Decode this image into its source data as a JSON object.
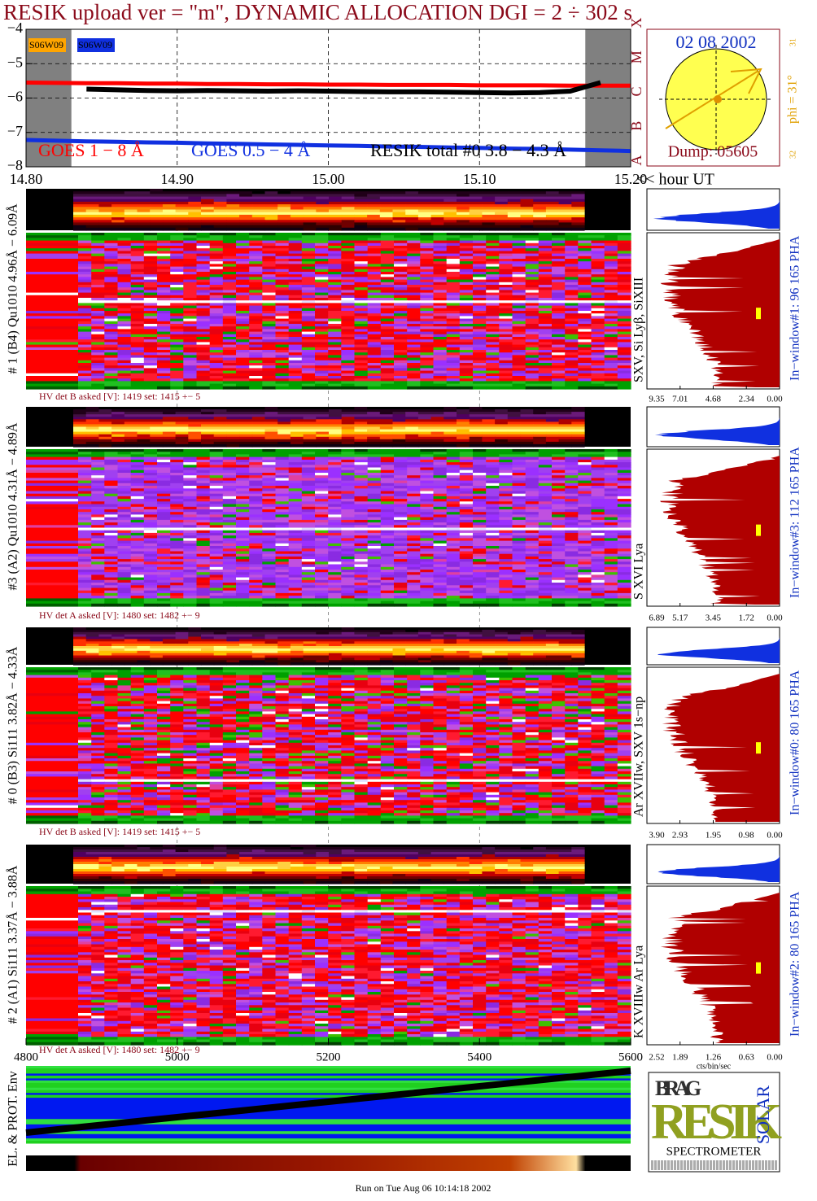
{
  "title": "RESIK upload ver = \"m\", DYNAMIC ALLOCATION  DGI =   2 ÷ 302 s",
  "time_axis_label": "<< hour UT",
  "footer": "Run on Tue Aug 06 10:14:18 2002",
  "sun": {
    "date": "02 08 2002",
    "dump": "Dump: 05605",
    "phi": "phi = 31°",
    "top": "31",
    "bottom": "32"
  },
  "logo": {
    "top": "BRAG",
    "main": "RESIK",
    "side": "SOLAR",
    "caption": "SPECTROMETER"
  },
  "chart_data": [
    {
      "type": "line",
      "x": [
        14.8,
        14.82,
        14.84,
        14.86,
        14.88,
        14.9,
        14.92,
        14.94,
        14.96,
        14.98,
        15.0,
        15.02,
        15.04,
        15.06,
        15.08,
        15.1,
        15.12,
        15.14,
        15.16,
        15.18,
        15.2
      ],
      "xlim": [
        14.8,
        15.2
      ],
      "xticks": [
        {
          "value": 14.8,
          "label": "14.80"
        },
        {
          "value": 14.9,
          "label": "14.90"
        },
        {
          "value": 15.0,
          "label": "15.00"
        },
        {
          "value": 15.1,
          "label": "15.10"
        },
        {
          "value": 15.2,
          "label": "15.20"
        }
      ],
      "ylim": [
        -8,
        -4
      ],
      "yticks": [
        {
          "value": -4,
          "label": "−4"
        },
        {
          "value": -5,
          "label": "−5"
        },
        {
          "value": -6,
          "label": "−6"
        },
        {
          "value": -7,
          "label": "−7"
        },
        {
          "value": -8,
          "label": "−8"
        }
      ],
      "grid": true,
      "shaded_x": [
        [
          14.8,
          14.83
        ],
        [
          15.17,
          15.2
        ]
      ],
      "flare_classes": [
        "A",
        "B",
        "C",
        "M",
        "X"
      ],
      "sources": [
        {
          "name": "S06W09",
          "color": "#ffa500"
        },
        {
          "name": "S06W09",
          "color": "#1030e0"
        }
      ],
      "series": [
        {
          "name": "GOES 1 − 8 Å",
          "color": "#ff0000",
          "values": [
            -5.55,
            -5.56,
            -5.57,
            -5.57,
            -5.58,
            -5.58,
            -5.59,
            -5.59,
            -5.6,
            -5.6,
            -5.61,
            -5.61,
            -5.62,
            -5.62,
            -5.62,
            -5.63,
            -5.63,
            -5.63,
            -5.64,
            -5.64,
            -5.64
          ]
        },
        {
          "name": "GOES 0.5 − 4 Å",
          "color": "#1030e0",
          "values": [
            -7.22,
            -7.24,
            -7.26,
            -7.27,
            -7.29,
            -7.3,
            -7.32,
            -7.33,
            -7.35,
            -7.36,
            -7.38,
            -7.39,
            -7.41,
            -7.42,
            -7.44,
            -7.45,
            -7.47,
            -7.48,
            -7.5,
            -7.52,
            -7.54
          ]
        },
        {
          "name": "RESIK total #0  3.8 − 4.3 Å",
          "color": "#000000",
          "values": [
            null,
            null,
            -5.74,
            -5.76,
            -5.78,
            -5.79,
            -5.78,
            -5.79,
            -5.8,
            -5.79,
            -5.8,
            -5.81,
            -5.82,
            -5.82,
            -5.83,
            -5.84,
            -5.85,
            -5.84,
            -5.8,
            -5.55,
            null
          ]
        }
      ]
    },
    {
      "type": "heatmap",
      "label": "# 1 (B4) Qu1010 4.96Å − 6.09Å",
      "lines_label": "SXV, Si Lyβ, SiXIII",
      "window_label": "In−window#1:   96 165  PHA",
      "hv_label": "HV det B asked [V]:  1419 set:  1415 +−    5",
      "hist_xlim": [
        9.35,
        0
      ],
      "hist_xticks": [
        9.35,
        7.01,
        4.68,
        2.34,
        {
          "value": 0,
          "label": "0.00"
        }
      ]
    },
    {
      "type": "heatmap",
      "label": "#3 (A2) Qu1010  4.31Å − 4.89Å",
      "lines_label": "S XVI Lya",
      "window_label": "In−window#3:  112 165  PHA",
      "hv_label": "HV det A asked [V]:  1480 set:  1482 +−    9",
      "hist_xlim": [
        6.89,
        0
      ],
      "hist_xticks": [
        6.89,
        5.17,
        3.45,
        1.72,
        {
          "value": 0,
          "label": "0.00"
        }
      ]
    },
    {
      "type": "heatmap",
      "label": "# 0 (B3) Si111  3.82Å − 4.33Å",
      "lines_label": "Ar XVIIw,  SXV 1s−np",
      "window_label": "In−window#0:   80 165  PHA",
      "hv_label": "HV det B asked [V]:  1419 set:  1415 +−    5",
      "hist_xlim": [
        3.9,
        0
      ],
      "hist_xticks": [
        {
          "value": 3.9,
          "label": "3.90"
        },
        2.93,
        1.95,
        0.98,
        {
          "value": 0,
          "label": "0.00"
        }
      ]
    },
    {
      "type": "heatmap",
      "label": "# 2 (A1) Si111  3.37Å − 3.88Å",
      "lines_label": "K XVIIIw  Ar Lya",
      "window_label": "In−window#2:   80 165  PHA",
      "hv_label": "HV det A asked [V]:  1480 set:  1482 +−    9",
      "hist_xlim": [
        2.52,
        0
      ],
      "hist_xticks": [
        2.52,
        1.89,
        1.26,
        0.63,
        {
          "value": 0,
          "label": "0.00"
        }
      ],
      "hist_xlabel": "cts/bin/sec"
    },
    {
      "type": "envelope",
      "label": "EL. & PROT. Env",
      "xlim": [
        4800,
        5600
      ],
      "xticks": [
        4800,
        5000,
        5200,
        5400,
        5600
      ]
    }
  ]
}
